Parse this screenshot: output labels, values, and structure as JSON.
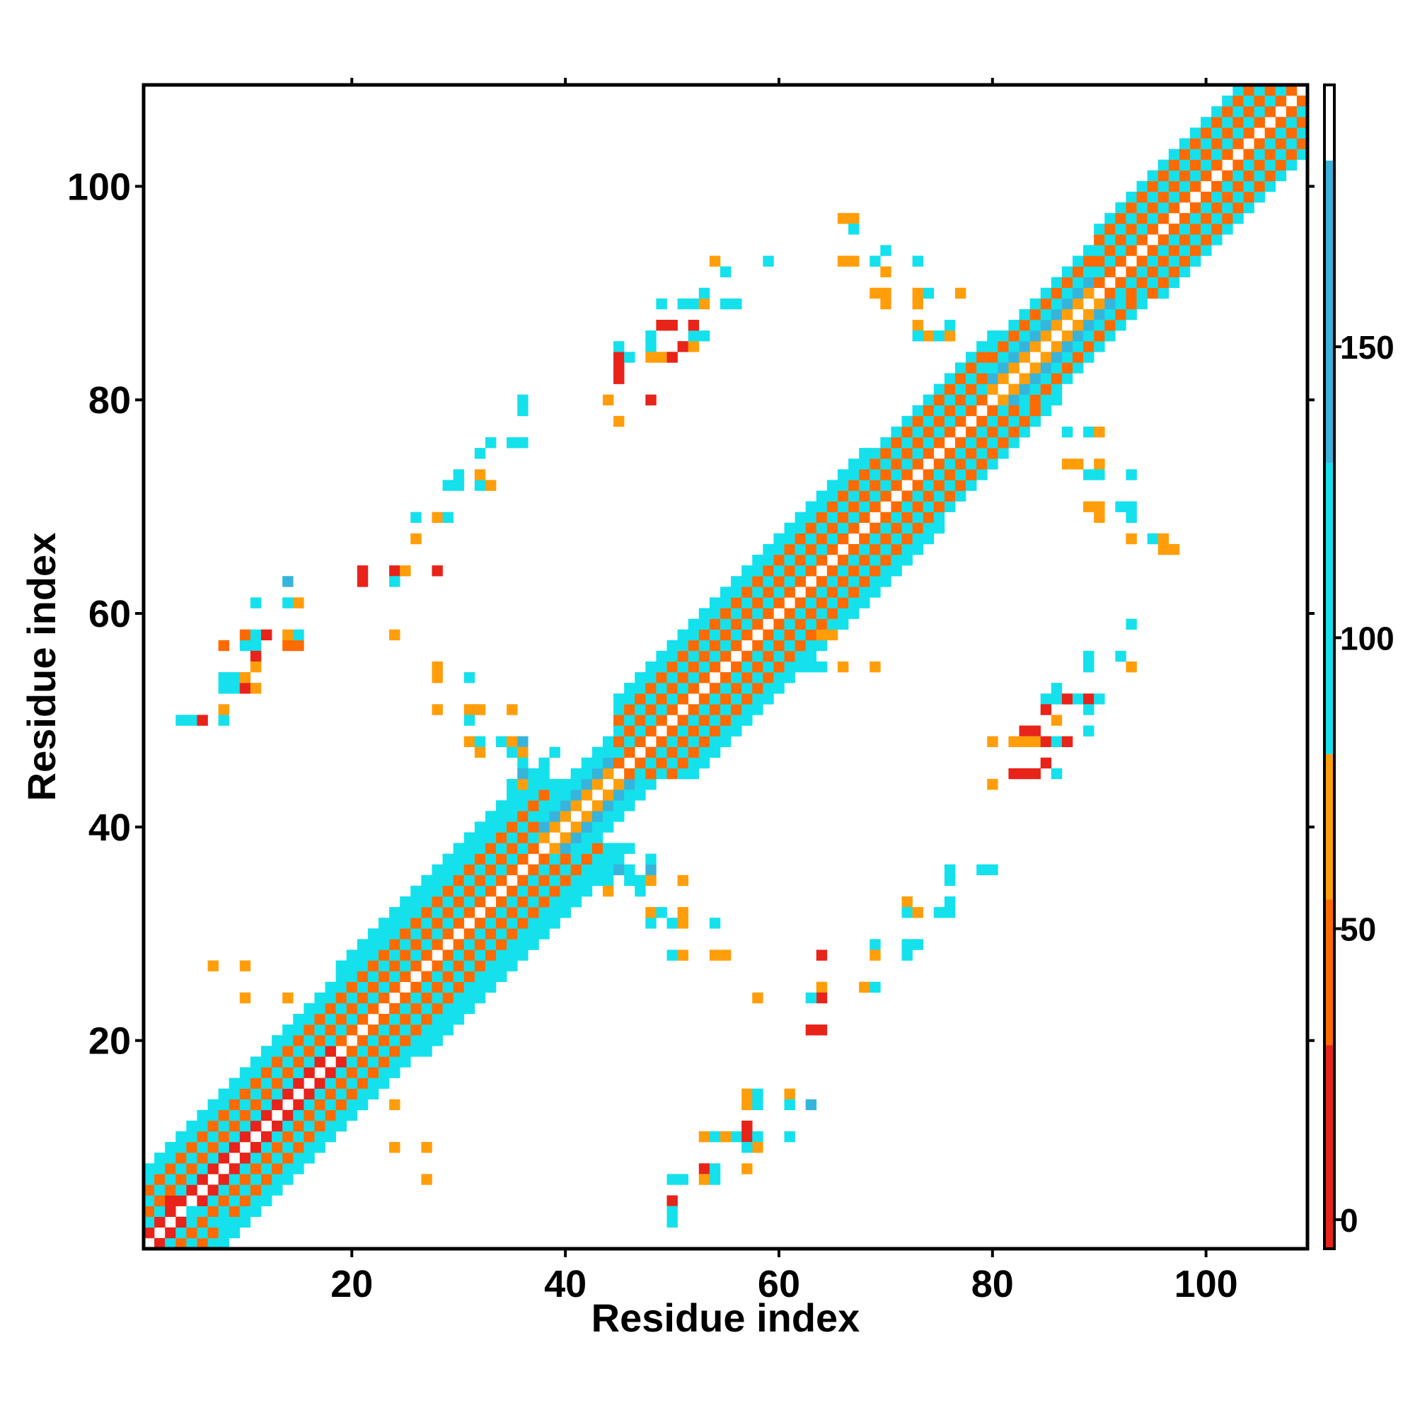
{
  "chart_data": {
    "type": "heatmap",
    "title": "",
    "xlabel": "Residue index",
    "ylabel": "Residue index",
    "xlim": [
      0.5,
      109.5
    ],
    "ylim": [
      0.5,
      109.5
    ],
    "x_ticks": [
      20,
      40,
      60,
      80,
      100
    ],
    "y_ticks": [
      20,
      40,
      60,
      80,
      100
    ],
    "grid": false,
    "colorbar": {
      "range": [
        -5,
        195
      ],
      "ticks": [
        0,
        50,
        100,
        150
      ],
      "bands": [
        {
          "from": -5,
          "to": 30,
          "color": "#e8231a"
        },
        {
          "from": 30,
          "to": 55,
          "color": "#ff6a00"
        },
        {
          "from": 55,
          "to": 80,
          "color": "#ff9e0a"
        },
        {
          "from": 80,
          "to": 130,
          "color": "#14e1ec"
        },
        {
          "from": 130,
          "to": 182,
          "color": "#37b4dc"
        },
        {
          "from": 182,
          "to": 195,
          "color": "#ffffff"
        }
      ]
    },
    "value_note": "cell values are approximate representative values read from the colorbar bands",
    "bands_along_diagonal": [
      {
        "from": 1,
        "to": 19,
        "offsets": [
          [
            1,
            10
          ],
          [
            2,
            100
          ],
          [
            3,
            45
          ],
          [
            4,
            100
          ],
          [
            5,
            40
          ],
          [
            6,
            100
          ],
          [
            7,
            100
          ]
        ]
      },
      {
        "from": 19,
        "to": 38,
        "offsets": [
          [
            1,
            40
          ],
          [
            2,
            100
          ],
          [
            3,
            45
          ],
          [
            4,
            100
          ],
          [
            5,
            40
          ],
          [
            6,
            100
          ],
          [
            7,
            105
          ],
          [
            8,
            100
          ]
        ]
      },
      {
        "from": 38,
        "to": 45,
        "offsets": [
          [
            1,
            70
          ],
          [
            2,
            140
          ],
          [
            3,
            100
          ],
          [
            4,
            105
          ]
        ]
      },
      {
        "from": 45,
        "to": 68,
        "offsets": [
          [
            1,
            45
          ],
          [
            2,
            100
          ],
          [
            3,
            40
          ],
          [
            4,
            100
          ],
          [
            5,
            45
          ],
          [
            6,
            100
          ],
          [
            7,
            105
          ]
        ]
      },
      {
        "from": 68,
        "to": 80,
        "offsets": [
          [
            1,
            40
          ],
          [
            2,
            100
          ],
          [
            3,
            45
          ],
          [
            4,
            100
          ],
          [
            5,
            40
          ],
          [
            6,
            100
          ]
        ]
      },
      {
        "from": 80,
        "to": 90,
        "offsets": [
          [
            1,
            70
          ],
          [
            2,
            140
          ],
          [
            3,
            100
          ],
          [
            4,
            45
          ],
          [
            5,
            100
          ]
        ]
      },
      {
        "from": 90,
        "to": 110,
        "offsets": [
          [
            1,
            45
          ],
          [
            2,
            100
          ],
          [
            3,
            40
          ],
          [
            4,
            100
          ],
          [
            5,
            45
          ],
          [
            6,
            100
          ]
        ]
      }
    ],
    "cells": [
      [
        5,
        50,
        100
      ],
      [
        4,
        50,
        100
      ],
      [
        6,
        50,
        10
      ],
      [
        8,
        50,
        100
      ],
      [
        8,
        51,
        70
      ],
      [
        8,
        53,
        100
      ],
      [
        9,
        53,
        100
      ],
      [
        8,
        54,
        100
      ],
      [
        9,
        54,
        100
      ],
      [
        10,
        53,
        10
      ],
      [
        8,
        57,
        45
      ],
      [
        10,
        57,
        100
      ],
      [
        11,
        57,
        100
      ],
      [
        10,
        58,
        45
      ],
      [
        11,
        58,
        100
      ],
      [
        12,
        58,
        10
      ],
      [
        11,
        56,
        10
      ],
      [
        11,
        55,
        70
      ],
      [
        10,
        54,
        70
      ],
      [
        11,
        53,
        70
      ],
      [
        11,
        61,
        100
      ],
      [
        14,
        61,
        100
      ],
      [
        15,
        61,
        70
      ],
      [
        14,
        63,
        140
      ],
      [
        14,
        57,
        45
      ],
      [
        15,
        57,
        45
      ],
      [
        14,
        58,
        70
      ],
      [
        15,
        58,
        100
      ],
      [
        21,
        64,
        10
      ],
      [
        21,
        63,
        10
      ],
      [
        24,
        64,
        10
      ],
      [
        25,
        64,
        70
      ],
      [
        24,
        63,
        100
      ],
      [
        28,
        64,
        10
      ],
      [
        24,
        58,
        70
      ],
      [
        26,
        67,
        70
      ],
      [
        26,
        69,
        100
      ],
      [
        28,
        69,
        70
      ],
      [
        29,
        69,
        100
      ],
      [
        29,
        72,
        100
      ],
      [
        30,
        72,
        100
      ],
      [
        30,
        73,
        100
      ],
      [
        32,
        72,
        100
      ],
      [
        33,
        72,
        70
      ],
      [
        32,
        73,
        70
      ],
      [
        32,
        75,
        100
      ],
      [
        33,
        76,
        100
      ],
      [
        35,
        76,
        100
      ],
      [
        36,
        76,
        100
      ],
      [
        36,
        79,
        100
      ],
      [
        36,
        80,
        100
      ],
      [
        28,
        55,
        70
      ],
      [
        28,
        54,
        70
      ],
      [
        31,
        54,
        100
      ],
      [
        28,
        51,
        70
      ],
      [
        31,
        51,
        70
      ],
      [
        32,
        51,
        70
      ],
      [
        31,
        50,
        100
      ],
      [
        35,
        51,
        70
      ],
      [
        31,
        48,
        70
      ],
      [
        32,
        48,
        100
      ],
      [
        32,
        47,
        70
      ],
      [
        34,
        48,
        100
      ],
      [
        35,
        48,
        70
      ],
      [
        36,
        48,
        140
      ],
      [
        35,
        47,
        100
      ],
      [
        36,
        47,
        70
      ],
      [
        36,
        46,
        100
      ],
      [
        36,
        45,
        140
      ],
      [
        35,
        44,
        100
      ],
      [
        36,
        44,
        70
      ],
      [
        37,
        44,
        100
      ],
      [
        35,
        43,
        100
      ],
      [
        39,
        47,
        100
      ],
      [
        38,
        45,
        100
      ],
      [
        39,
        44,
        100
      ],
      [
        44,
        36,
        100
      ],
      [
        45,
        36,
        140
      ],
      [
        44,
        35,
        100
      ],
      [
        44,
        34,
        70
      ],
      [
        46,
        35,
        100
      ],
      [
        46,
        36,
        100
      ],
      [
        47,
        35,
        100
      ],
      [
        47,
        34,
        100
      ],
      [
        48,
        35,
        70
      ],
      [
        48,
        36,
        140
      ],
      [
        46,
        38,
        100
      ],
      [
        48,
        37,
        100
      ],
      [
        48,
        32,
        70
      ],
      [
        48,
        31,
        100
      ],
      [
        49,
        32,
        100
      ],
      [
        50,
        31,
        100
      ],
      [
        51,
        31,
        70
      ],
      [
        51,
        32,
        70
      ],
      [
        51,
        35,
        70
      ],
      [
        51,
        28,
        70
      ],
      [
        54,
        28,
        70
      ],
      [
        55,
        28,
        70
      ],
      [
        54,
        31,
        100
      ],
      [
        50,
        28,
        100
      ],
      [
        45,
        78,
        70
      ],
      [
        45,
        83,
        10
      ],
      [
        45,
        82,
        10
      ],
      [
        45,
        84,
        10
      ],
      [
        46,
        84,
        100
      ],
      [
        45,
        85,
        100
      ],
      [
        48,
        85,
        100
      ],
      [
        48,
        86,
        100
      ],
      [
        49,
        87,
        10
      ],
      [
        50,
        87,
        10
      ],
      [
        49,
        84,
        70
      ],
      [
        48,
        84,
        70
      ],
      [
        50,
        84,
        10
      ],
      [
        51,
        85,
        10
      ],
      [
        52,
        85,
        70
      ],
      [
        52,
        86,
        100
      ],
      [
        53,
        86,
        100
      ],
      [
        52,
        87,
        10
      ],
      [
        51,
        89,
        100
      ],
      [
        52,
        89,
        100
      ],
      [
        53,
        89,
        70
      ],
      [
        53,
        90,
        100
      ],
      [
        55,
        89,
        100
      ],
      [
        56,
        89,
        100
      ],
      [
        49,
        89,
        100
      ],
      [
        48,
        80,
        10
      ],
      [
        44,
        80,
        70
      ],
      [
        54,
        93,
        70
      ],
      [
        55,
        92,
        100
      ],
      [
        59,
        93,
        100
      ],
      [
        66,
        97,
        70
      ],
      [
        67,
        97,
        70
      ],
      [
        67,
        96,
        100
      ],
      [
        66,
        93,
        70
      ],
      [
        67,
        93,
        70
      ],
      [
        69,
        93,
        100
      ],
      [
        70,
        92,
        70
      ],
      [
        70,
        94,
        100
      ],
      [
        73,
        93,
        100
      ],
      [
        69,
        90,
        70
      ],
      [
        70,
        90,
        70
      ],
      [
        70,
        89,
        70
      ],
      [
        73,
        90,
        70
      ],
      [
        74,
        90,
        100
      ],
      [
        73,
        89,
        70
      ],
      [
        77,
        90,
        70
      ],
      [
        73,
        87,
        70
      ],
      [
        74,
        86,
        70
      ],
      [
        73,
        86,
        100
      ],
      [
        75,
        86,
        100
      ],
      [
        76,
        86,
        70
      ],
      [
        76,
        87,
        100
      ],
      [
        87,
        77,
        100
      ],
      [
        89,
        77,
        100
      ],
      [
        90,
        77,
        70
      ],
      [
        87,
        74,
        70
      ],
      [
        88,
        74,
        70
      ],
      [
        89,
        73,
        100
      ],
      [
        90,
        74,
        70
      ],
      [
        90,
        73,
        100
      ],
      [
        93,
        73,
        100
      ],
      [
        89,
        70,
        70
      ],
      [
        90,
        70,
        70
      ],
      [
        90,
        69,
        70
      ],
      [
        92,
        70,
        100
      ],
      [
        93,
        70,
        100
      ],
      [
        93,
        69,
        100
      ],
      [
        93,
        67,
        70
      ],
      [
        95,
        67,
        100
      ],
      [
        96,
        67,
        70
      ],
      [
        96,
        66,
        70
      ],
      [
        97,
        66,
        70
      ],
      [
        63,
        59,
        100
      ],
      [
        64,
        58,
        70
      ],
      [
        65,
        58,
        70
      ],
      [
        65,
        59,
        100
      ],
      [
        63,
        55,
        100
      ],
      [
        64,
        55,
        100
      ],
      [
        66,
        55,
        70
      ],
      [
        69,
        55,
        70
      ],
      [
        89,
        56,
        100
      ],
      [
        89,
        55,
        100
      ],
      [
        92,
        56,
        100
      ],
      [
        93,
        55,
        70
      ],
      [
        93,
        59,
        100
      ],
      [
        86,
        53,
        100
      ],
      [
        85,
        52,
        100
      ],
      [
        86,
        52,
        100
      ],
      [
        87,
        52,
        10
      ],
      [
        88,
        52,
        100
      ],
      [
        89,
        52,
        10
      ],
      [
        89,
        51,
        100
      ],
      [
        90,
        52,
        100
      ],
      [
        85,
        51,
        10
      ],
      [
        86,
        50,
        70
      ],
      [
        84,
        49,
        10
      ],
      [
        83,
        49,
        10
      ],
      [
        82,
        48,
        70
      ],
      [
        83,
        48,
        70
      ],
      [
        84,
        48,
        70
      ],
      [
        85,
        48,
        10
      ],
      [
        86,
        48,
        100
      ],
      [
        87,
        48,
        10
      ],
      [
        89,
        49,
        100
      ],
      [
        80,
        48,
        70
      ],
      [
        82,
        45,
        10
      ],
      [
        83,
        45,
        10
      ],
      [
        84,
        45,
        10
      ],
      [
        85,
        46,
        10
      ],
      [
        86,
        45,
        100
      ],
      [
        80,
        44,
        70
      ],
      [
        76,
        36,
        100
      ],
      [
        76,
        35,
        100
      ],
      [
        79,
        36,
        100
      ],
      [
        80,
        36,
        100
      ],
      [
        72,
        33,
        70
      ],
      [
        72,
        32,
        100
      ],
      [
        73,
        32,
        70
      ],
      [
        75,
        32,
        100
      ],
      [
        76,
        32,
        100
      ],
      [
        76,
        33,
        100
      ],
      [
        64,
        28,
        10
      ],
      [
        69,
        29,
        100
      ],
      [
        69,
        28,
        70
      ],
      [
        72,
        29,
        100
      ],
      [
        73,
        29,
        100
      ],
      [
        72,
        28,
        100
      ],
      [
        64,
        25,
        70
      ],
      [
        64,
        24,
        10
      ],
      [
        63,
        24,
        100
      ],
      [
        68,
        25,
        70
      ],
      [
        69,
        25,
        100
      ],
      [
        58,
        24,
        70
      ],
      [
        63,
        21,
        10
      ],
      [
        64,
        21,
        10
      ],
      [
        57,
        15,
        70
      ],
      [
        58,
        15,
        100
      ],
      [
        61,
        15,
        70
      ],
      [
        57,
        14,
        70
      ],
      [
        58,
        14,
        100
      ],
      [
        61,
        14,
        100
      ],
      [
        63,
        14,
        140
      ],
      [
        53,
        11,
        70
      ],
      [
        54,
        11,
        100
      ],
      [
        55,
        11,
        70
      ],
      [
        56,
        11,
        100
      ],
      [
        57,
        12,
        10
      ],
      [
        57,
        11,
        10
      ],
      [
        58,
        11,
        100
      ],
      [
        61,
        11,
        100
      ],
      [
        58,
        10,
        70
      ],
      [
        57,
        10,
        100
      ],
      [
        53,
        8,
        10
      ],
      [
        54,
        8,
        100
      ],
      [
        54,
        7,
        100
      ],
      [
        53,
        7,
        70
      ],
      [
        57,
        8,
        70
      ],
      [
        50,
        7,
        100
      ],
      [
        51,
        7,
        100
      ],
      [
        50,
        5,
        10
      ],
      [
        50,
        4,
        100
      ],
      [
        50,
        3,
        100
      ],
      [
        7,
        27,
        70
      ],
      [
        10,
        27,
        70
      ],
      [
        10,
        24,
        70
      ],
      [
        14,
        24,
        70
      ],
      [
        24,
        14,
        70
      ],
      [
        24,
        10,
        70
      ],
      [
        27,
        10,
        70
      ],
      [
        27,
        7,
        70
      ],
      [
        8,
        3,
        100
      ],
      [
        5,
        4,
        100
      ],
      [
        3,
        5,
        10
      ]
    ]
  }
}
